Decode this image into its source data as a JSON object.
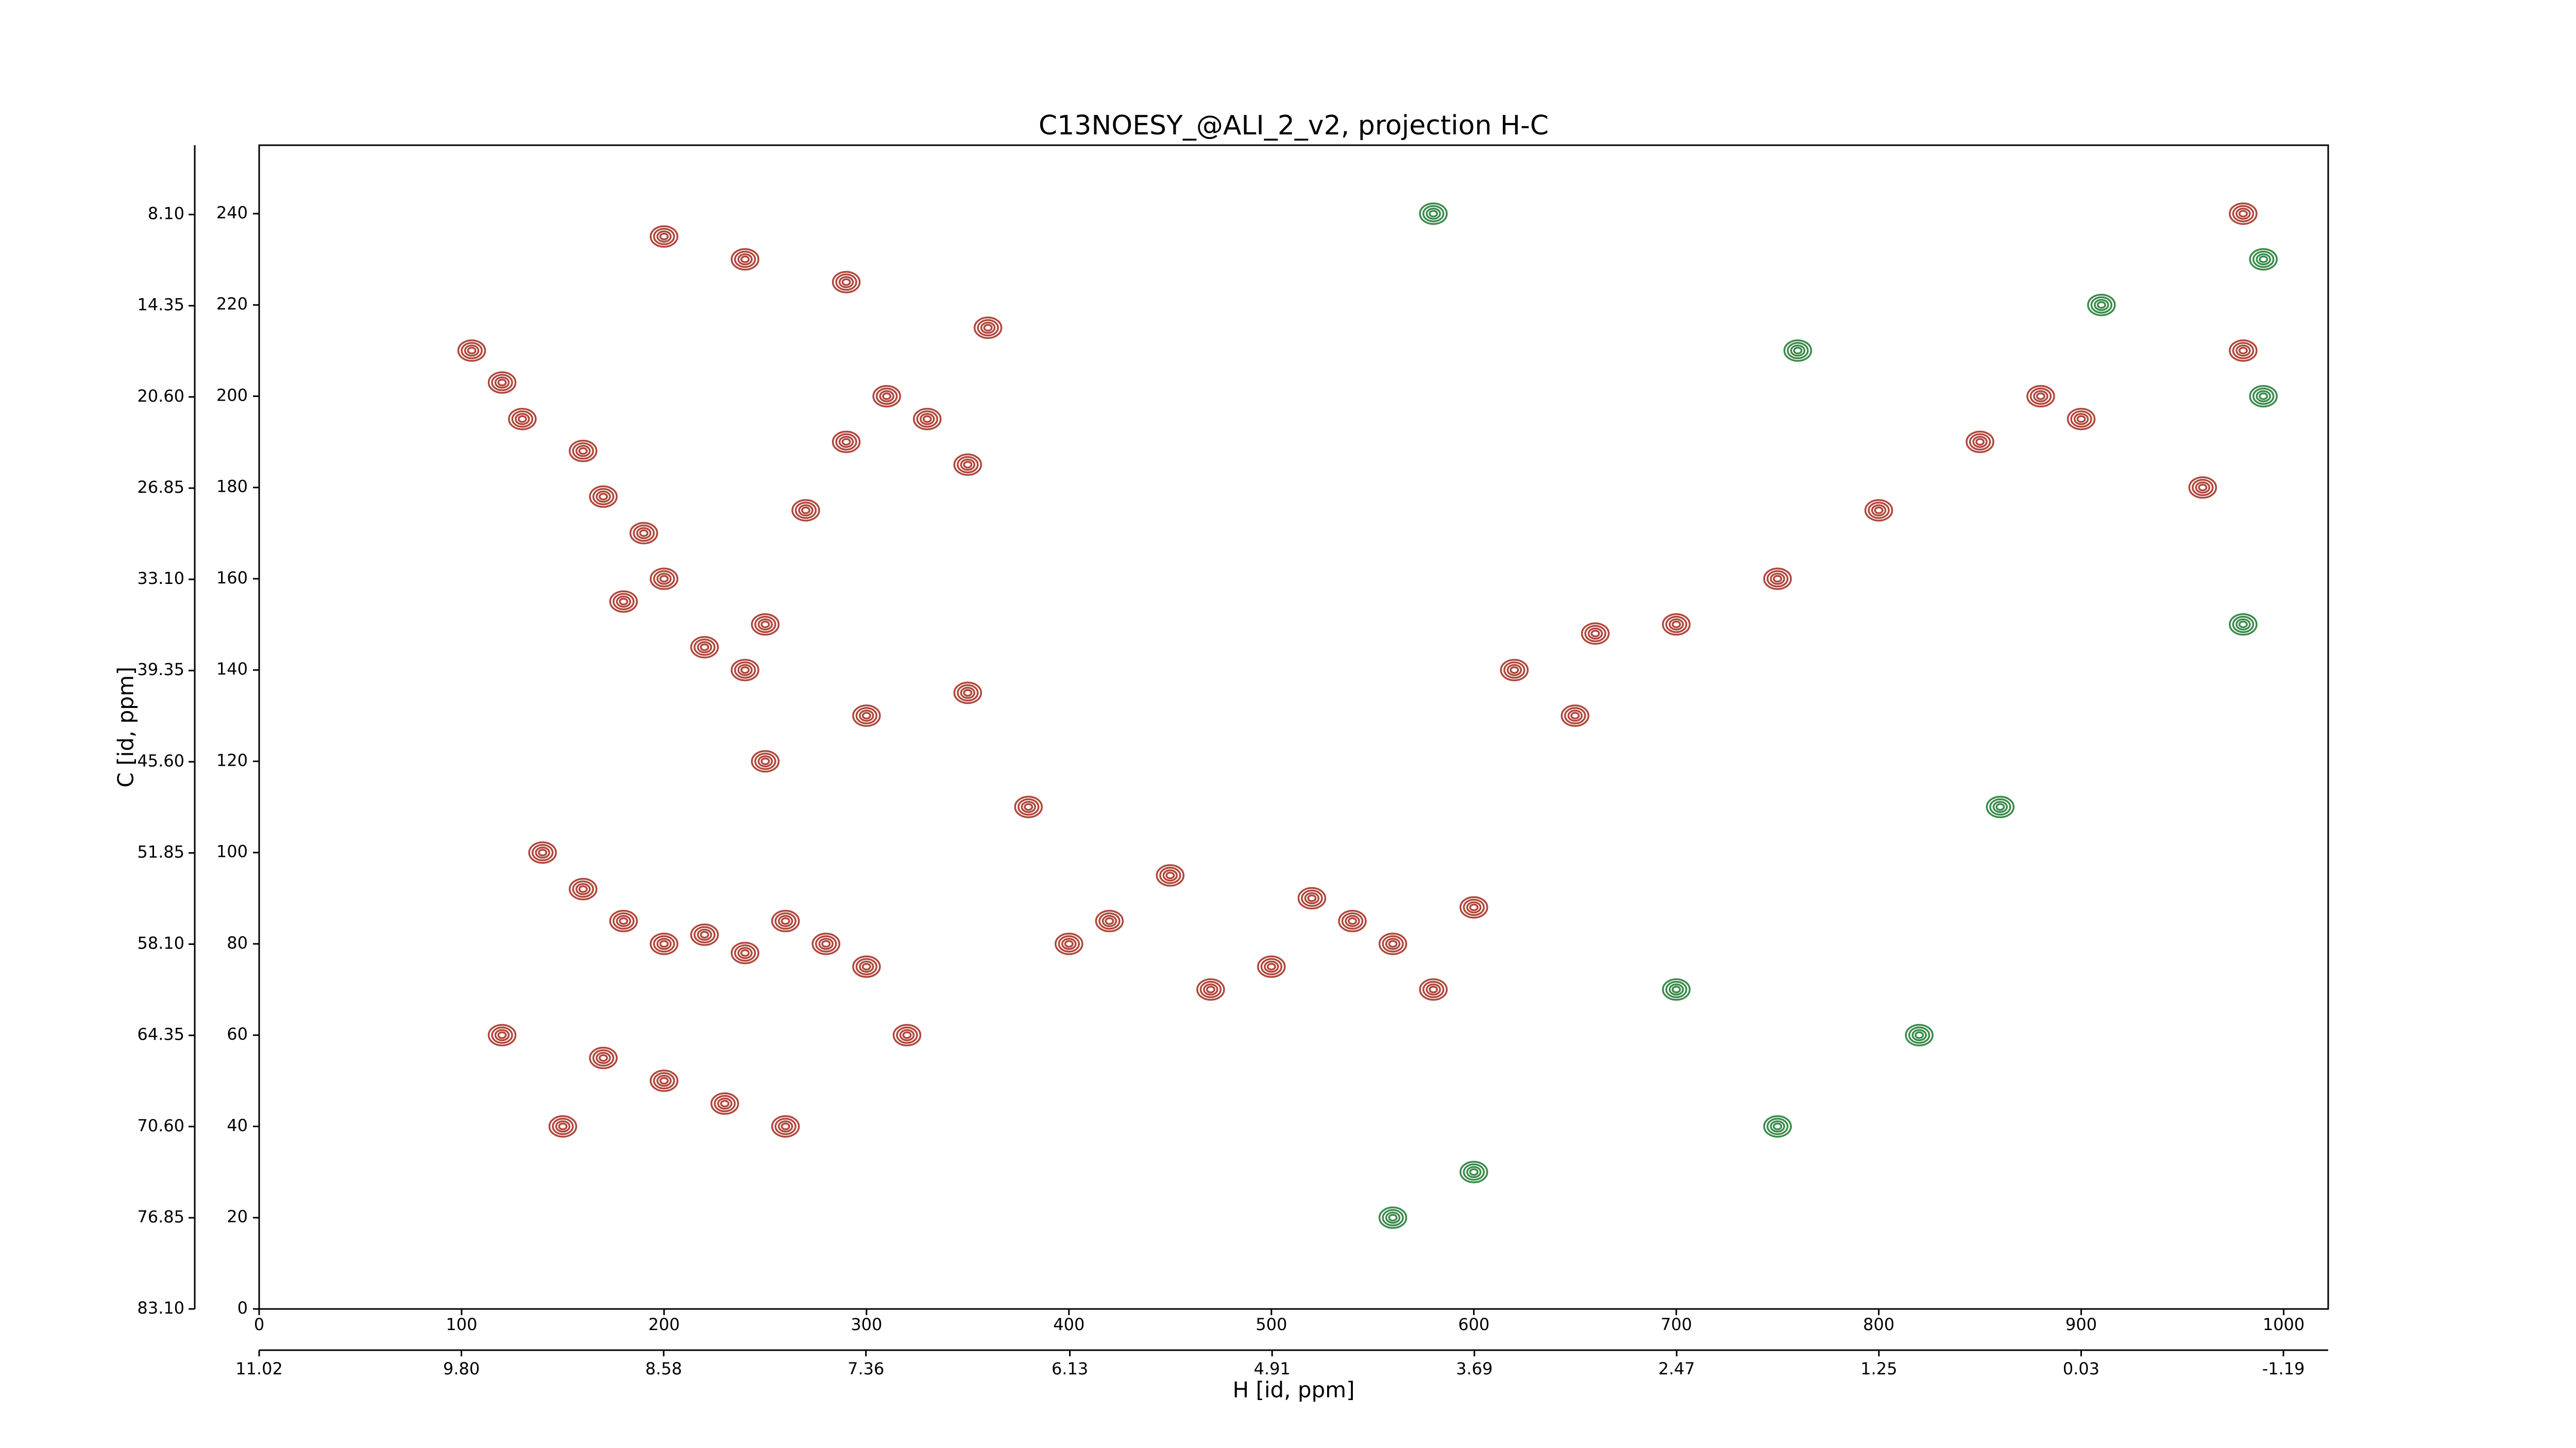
{
  "chart_data": {
    "type": "contour",
    "title": "C13NOESY_@ALI_2_v2, projection H-C",
    "xlabel": "H [id, ppm]",
    "ylabel": "C [id, ppm]",
    "xlim": [
      0,
      1022
    ],
    "ylim": [
      0,
      255
    ],
    "xticks": [
      0,
      100,
      200,
      300,
      400,
      500,
      600,
      700,
      800,
      900,
      1000
    ],
    "yticks": [
      0,
      20,
      40,
      60,
      80,
      100,
      120,
      140,
      160,
      180,
      200,
      220,
      240
    ],
    "x2lim": [
      11.02,
      -1.46
    ],
    "x2ticks": [
      11.02,
      {
        "value": 9.8,
        "label": "9.80"
      },
      8.58,
      7.36,
      6.13,
      4.91,
      3.69,
      2.47,
      1.25,
      0.03,
      -1.19
    ],
    "y2lim": [
      83.1,
      3.35
    ],
    "y2ticks": [
      {
        "value": 8.1,
        "label": "8.10"
      },
      14.35,
      {
        "value": 20.6,
        "label": "20.60"
      },
      26.85,
      {
        "value": 33.1,
        "label": "33.10"
      },
      39.35,
      {
        "value": 45.6,
        "label": "45.60"
      },
      51.85,
      {
        "value": 58.1,
        "label": "58.10"
      },
      64.35,
      {
        "value": 70.6,
        "label": "70.60"
      },
      76.85,
      {
        "value": 83.1,
        "label": "83.10"
      }
    ],
    "series": [
      {
        "color": "#b0463b",
        "x": [
          105,
          120,
          130,
          160,
          170,
          190,
          200,
          180,
          220,
          240,
          250,
          270,
          290,
          310,
          330,
          350,
          360,
          290,
          240,
          200,
          140,
          160,
          180,
          200,
          220,
          240,
          260,
          280,
          300,
          120,
          170,
          200,
          230,
          260,
          150,
          320,
          400,
          420,
          450,
          470,
          500,
          520,
          540,
          560,
          580,
          600,
          650,
          700,
          750,
          800,
          850,
          880,
          900,
          960,
          980,
          980,
          300,
          250,
          350,
          380,
          620,
          660
        ],
        "y": [
          210,
          203,
          195,
          188,
          178,
          170,
          160,
          155,
          145,
          140,
          150,
          175,
          190,
          200,
          195,
          185,
          215,
          225,
          230,
          235,
          100,
          92,
          85,
          80,
          82,
          78,
          85,
          80,
          75,
          60,
          55,
          50,
          45,
          40,
          40,
          60,
          80,
          85,
          95,
          70,
          75,
          90,
          85,
          80,
          70,
          88,
          130,
          150,
          160,
          175,
          190,
          200,
          195,
          180,
          240,
          210,
          130,
          120,
          135,
          110,
          140,
          148
        ]
      },
      {
        "color": "#3a8a4a",
        "x": [
          990,
          990,
          980,
          910,
          700,
          750,
          820,
          600,
          560,
          860,
          580,
          760
        ],
        "y": [
          230,
          200,
          150,
          220,
          70,
          40,
          60,
          30,
          20,
          110,
          240,
          210
        ]
      }
    ]
  }
}
